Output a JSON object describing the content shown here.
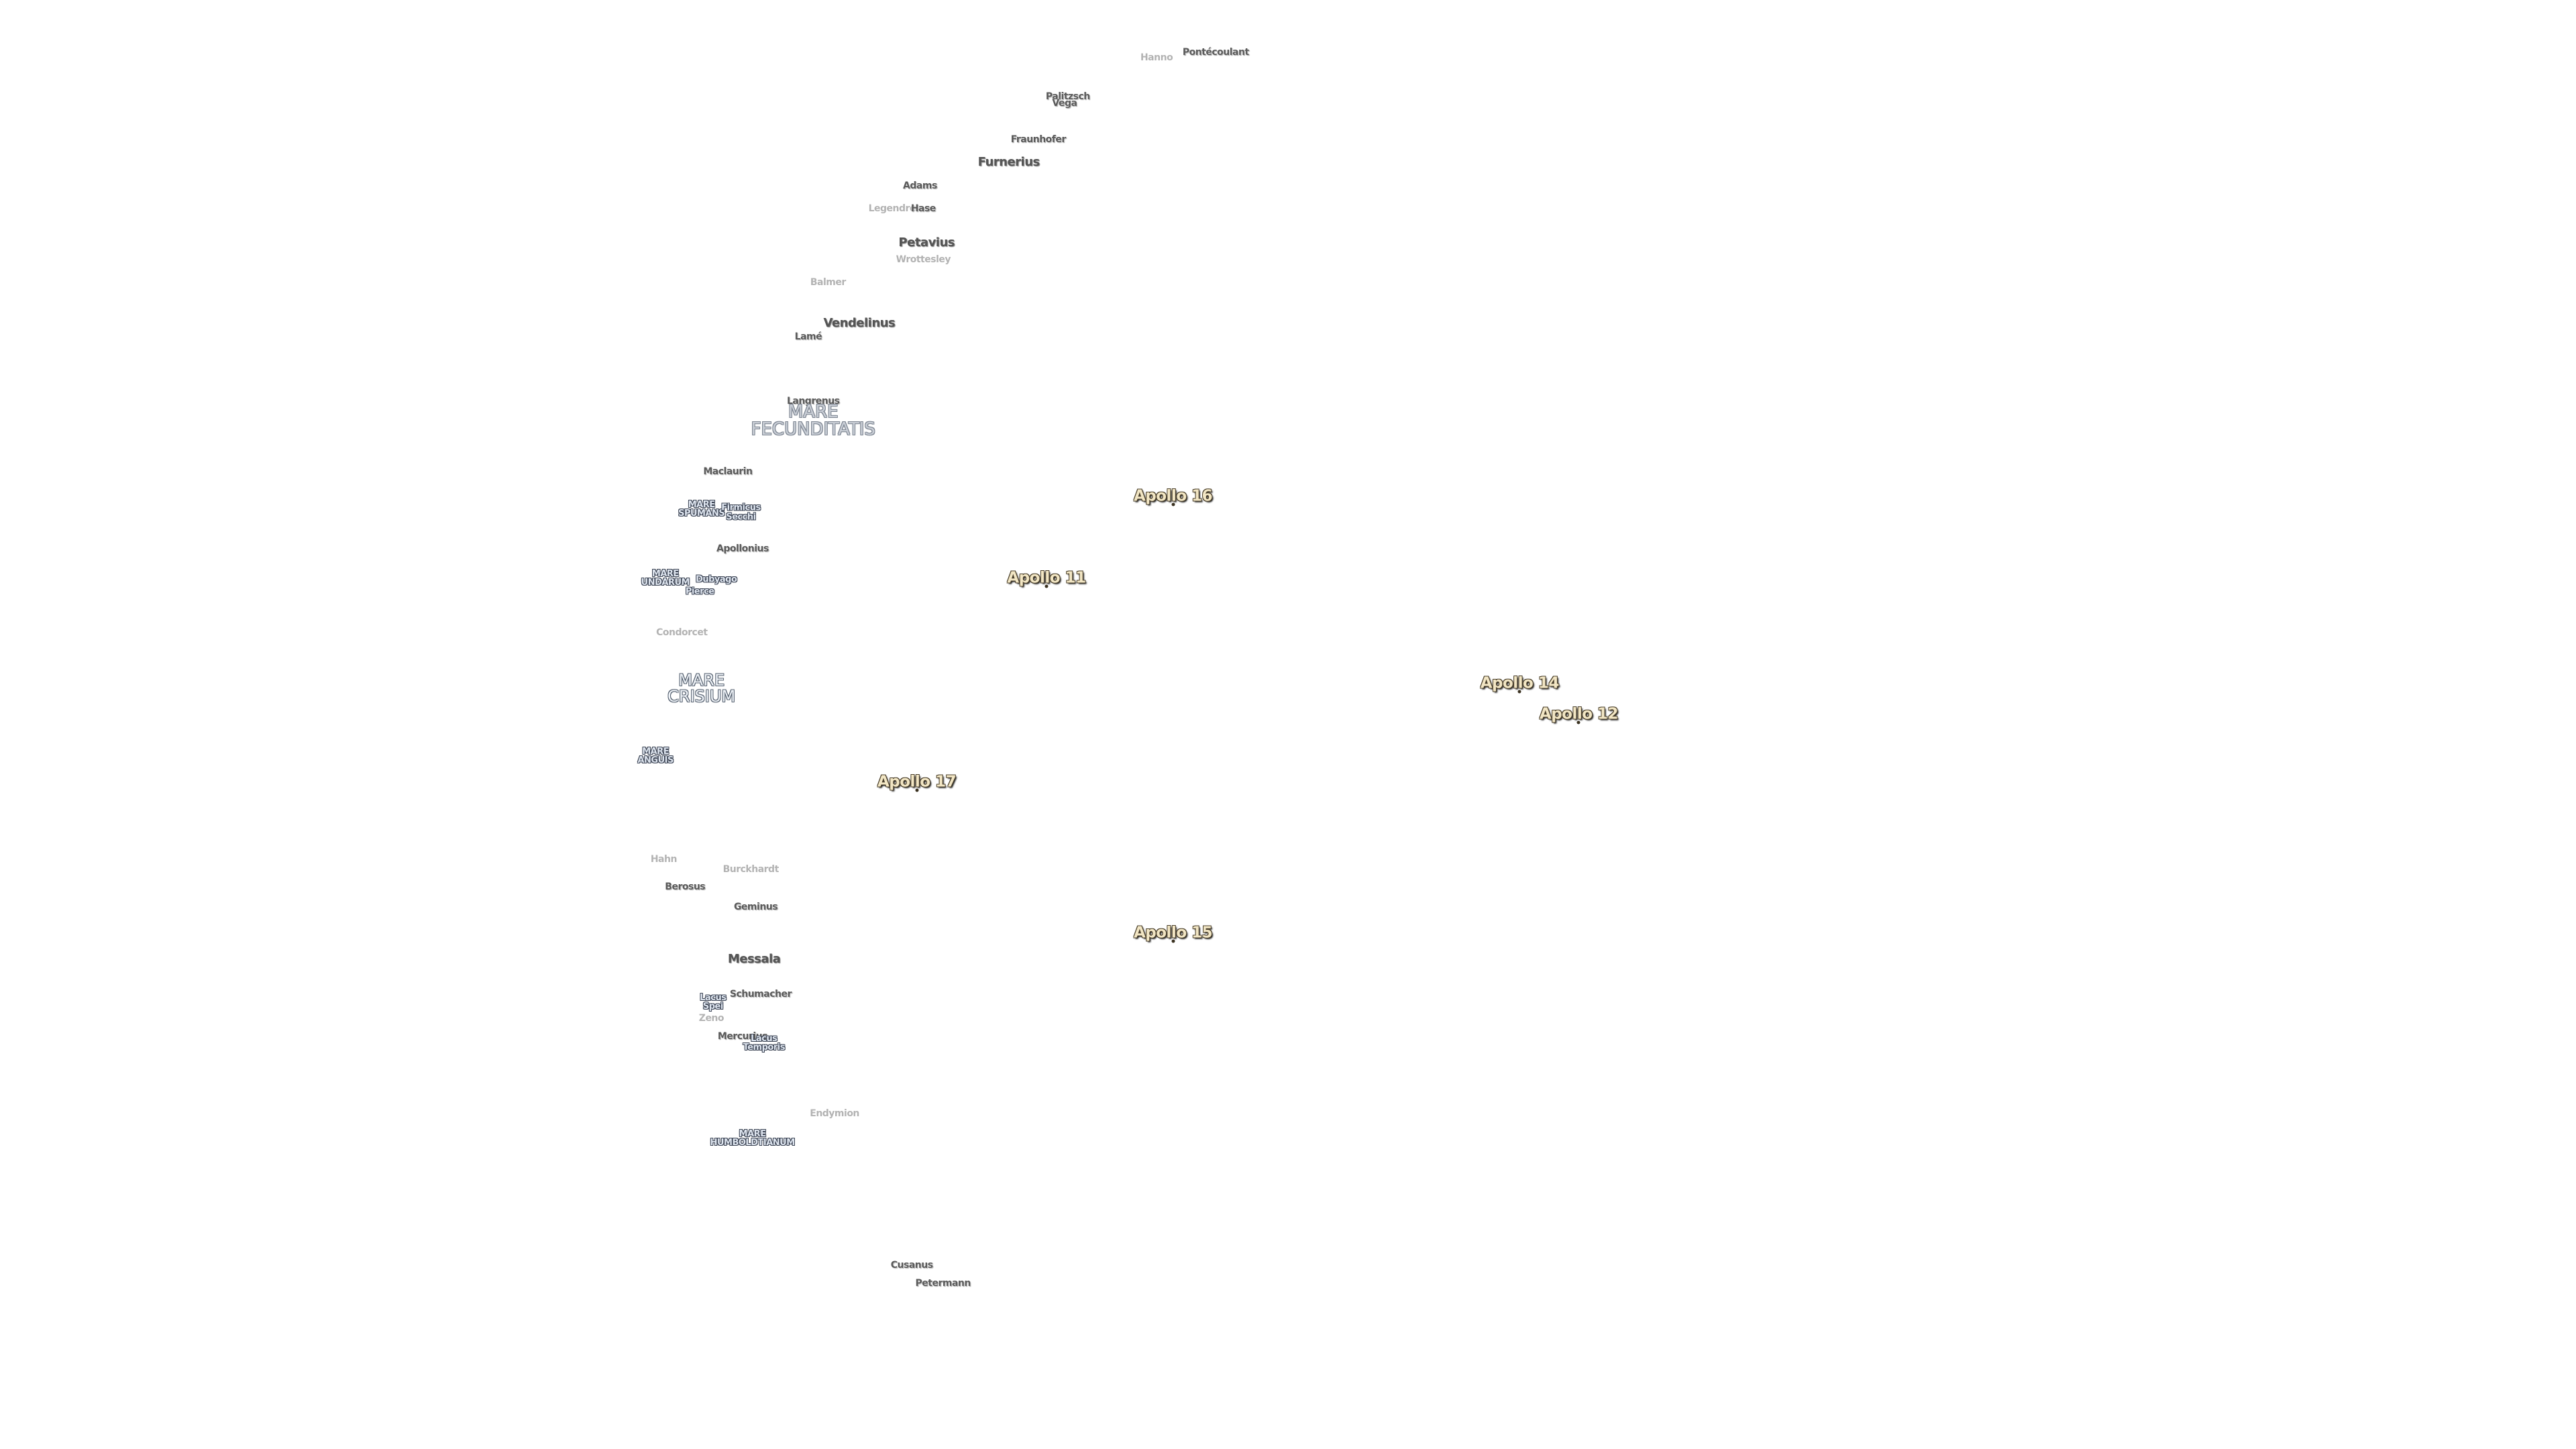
{
  "labels": [
    {
      "text": "Hanno"
    },
    {
      "text": "Pontécoulant"
    },
    {
      "text": "Palitzsch"
    },
    {
      "text": "Vega"
    },
    {
      "text": "Fraunhofer"
    },
    {
      "text": "Furnerius"
    },
    {
      "text": "Adams"
    },
    {
      "text": "Legendre"
    },
    {
      "text": "Hase"
    },
    {
      "text": "Petavius"
    },
    {
      "text": "Wrottesley"
    },
    {
      "text": "Balmer"
    },
    {
      "text": "Vendelinus"
    },
    {
      "text": "Lamé"
    },
    {
      "text": "Langrenus"
    },
    {
      "lines": [
        "MARE",
        "FECUNDITATIS"
      ]
    },
    {
      "text": "Maclaurin"
    },
    {
      "lines": [
        "MARE",
        "SPUMANS"
      ]
    },
    {
      "text": "Firmicus"
    },
    {
      "text": "Secchi"
    },
    {
      "text": "Apollonius"
    },
    {
      "lines": [
        "MARE",
        "UNDARUM"
      ]
    },
    {
      "text": "Dubyago"
    },
    {
      "text": "Pierce"
    },
    {
      "text": "Condorcet"
    },
    {
      "lines": [
        "MARE",
        "CRISIUM"
      ]
    },
    {
      "lines": [
        "MARE",
        "ANGUIS"
      ]
    },
    {
      "text": "Hahn"
    },
    {
      "text": "Burckhardt"
    },
    {
      "text": "Berosus"
    },
    {
      "text": "Geminus"
    },
    {
      "text": "Messala"
    },
    {
      "text": "Schumacher"
    },
    {
      "lines": [
        "Lacus",
        "Spei"
      ]
    },
    {
      "text": "Zeno"
    },
    {
      "text": "Mercurius"
    },
    {
      "lines": [
        "Lacus",
        "Temporis"
      ]
    },
    {
      "text": "Endymion"
    },
    {
      "lines": [
        "MARE",
        "HUMBOLDTIANUM"
      ]
    },
    {
      "text": "Cusanus"
    },
    {
      "text": "Petermann"
    }
  ],
  "apollo": [
    {
      "text": "Apollo 16"
    },
    {
      "text": "Apollo 11"
    },
    {
      "text": "Apollo 14"
    },
    {
      "text": "Apollo 12"
    },
    {
      "text": "Apollo 17"
    },
    {
      "text": "Apollo 15"
    }
  ]
}
